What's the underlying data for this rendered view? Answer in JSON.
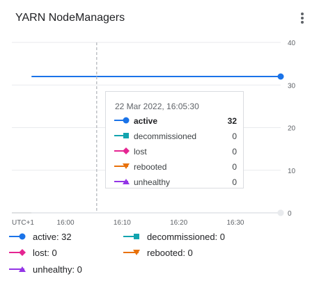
{
  "card": {
    "title": "YARN NodeManagers",
    "menu_icon": "more-vert-icon"
  },
  "chart_data": {
    "type": "line",
    "title": "YARN NodeManagers",
    "timezone_label": "UTC+1",
    "x_ticks": [
      "16:00",
      "16:10",
      "16:20",
      "16:30"
    ],
    "y_ticks": [
      0,
      10,
      20,
      30,
      40
    ],
    "ylim": [
      0,
      40
    ],
    "y_axis_side": "right",
    "grid": true,
    "hover_time": "22 Mar 2022, 16:05:30",
    "x": [
      "15:54",
      "15:56",
      "15:58",
      "16:00",
      "16:02",
      "16:04",
      "16:06",
      "16:08",
      "16:10",
      "16:12",
      "16:14",
      "16:16",
      "16:18",
      "16:20",
      "16:22",
      "16:24",
      "16:26",
      "16:28",
      "16:30",
      "16:32",
      "16:34",
      "16:36",
      "16:38"
    ],
    "series": [
      {
        "name": "active",
        "color": "#1a73e8",
        "marker": "circle",
        "values": [
          32,
          32,
          32,
          32,
          32,
          32,
          32,
          32,
          32,
          32,
          32,
          32,
          32,
          32,
          32,
          32,
          32,
          32,
          32,
          32,
          32,
          32,
          32
        ]
      },
      {
        "name": "decommissioned",
        "color": "#12a4af",
        "marker": "square",
        "values": [
          0,
          0,
          0,
          0,
          0,
          0,
          0,
          0,
          0,
          0,
          0,
          0,
          0,
          0,
          0,
          0,
          0,
          0,
          0,
          0,
          0,
          0,
          0
        ]
      },
      {
        "name": "lost",
        "color": "#e52592",
        "marker": "diamond",
        "values": [
          0,
          0,
          0,
          0,
          0,
          0,
          0,
          0,
          0,
          0,
          0,
          0,
          0,
          0,
          0,
          0,
          0,
          0,
          0,
          0,
          0,
          0,
          0
        ]
      },
      {
        "name": "rebooted",
        "color": "#e8710a",
        "marker": "triangle-down",
        "values": [
          0,
          0,
          0,
          0,
          0,
          0,
          0,
          0,
          0,
          0,
          0,
          0,
          0,
          0,
          0,
          0,
          0,
          0,
          0,
          0,
          0,
          0,
          0
        ]
      },
      {
        "name": "unhealthy",
        "color": "#9334e6",
        "marker": "triangle-up",
        "values": [
          0,
          0,
          0,
          0,
          0,
          0,
          0,
          0,
          0,
          0,
          0,
          0,
          0,
          0,
          0,
          0,
          0,
          0,
          0,
          0,
          0,
          0,
          0
        ]
      }
    ]
  },
  "tooltip": {
    "date": "22 Mar 2022, 16:05:30",
    "rows": [
      {
        "name": "active",
        "value": "32"
      },
      {
        "name": "decommissioned",
        "value": "0"
      },
      {
        "name": "lost",
        "value": "0"
      },
      {
        "name": "rebooted",
        "value": "0"
      },
      {
        "name": "unhealthy",
        "value": "0"
      }
    ]
  },
  "legend": [
    {
      "label": "active: 32"
    },
    {
      "label": "decommissioned: 0"
    },
    {
      "label": "lost: 0"
    },
    {
      "label": "rebooted: 0"
    },
    {
      "label": "unhealthy: 0"
    }
  ]
}
